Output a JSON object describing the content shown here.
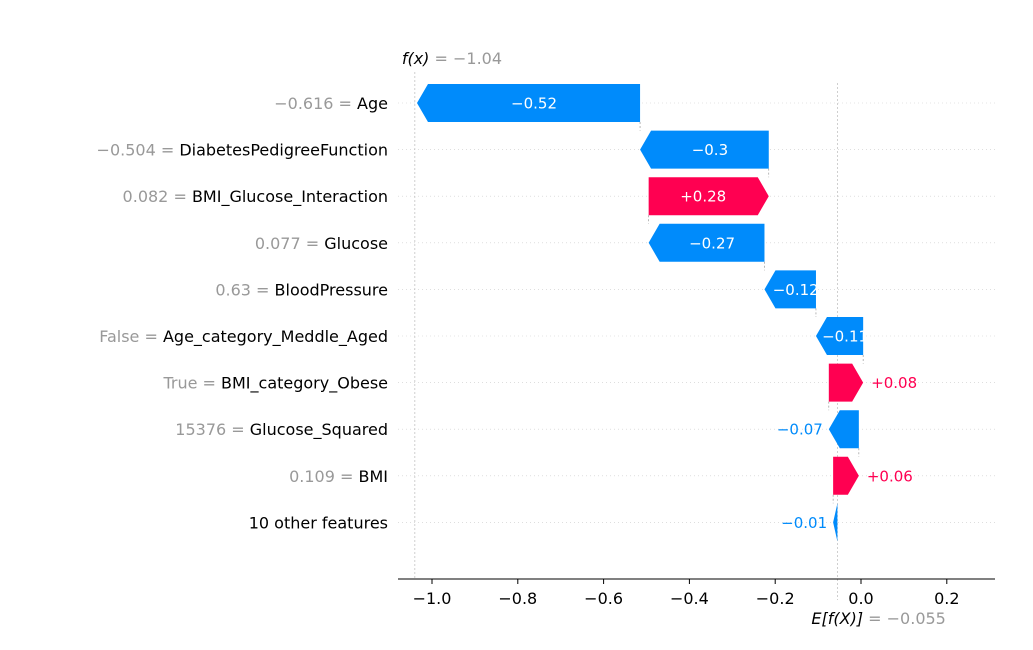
{
  "chart_data": {
    "type": "bar",
    "subtype": "shap-waterfall",
    "fx_label": "f(x)",
    "fx_value": "−1.04",
    "fx_numeric": -1.04,
    "ex_label": "E[f(X)]",
    "ex_value": "−0.055",
    "ex_numeric": -0.055,
    "xlim": [
      -1.08,
      0.32
    ],
    "xticks": [
      -1.0,
      -0.8,
      -0.6,
      -0.4,
      -0.2,
      0.0,
      0.2
    ],
    "xtick_labels": [
      "−1.0",
      "−0.8",
      "−0.6",
      "−0.4",
      "−0.2",
      "0.0",
      "0.2"
    ],
    "colors": {
      "positive": "#ff0051",
      "negative": "#008bfb",
      "value_text": "#999999"
    },
    "features": [
      {
        "value": "−0.616",
        "name": "Age",
        "shap": -0.52,
        "label": "−0.52",
        "start": -0.515,
        "end": -1.035
      },
      {
        "value": "−0.504",
        "name": "DiabetesPedigreeFunction",
        "shap": -0.3,
        "label": "−0.3",
        "start": -0.215,
        "end": -0.515
      },
      {
        "value": "0.082",
        "name": "BMI_Glucose_Interaction",
        "shap": 0.28,
        "label": "+0.28",
        "start": -0.495,
        "end": -0.215
      },
      {
        "value": "0.077",
        "name": "Glucose",
        "shap": -0.27,
        "label": "−0.27",
        "start": -0.225,
        "end": -0.495
      },
      {
        "value": "0.63",
        "name": "BloodPressure",
        "shap": -0.12,
        "label": "−0.12",
        "start": -0.105,
        "end": -0.225
      },
      {
        "value": "False",
        "name": "Age_category_Meddle_Aged",
        "shap": -0.11,
        "label": "−0.11",
        "start": 0.005,
        "end": -0.105
      },
      {
        "value": "True",
        "name": "BMI_category_Obese",
        "shap": 0.08,
        "label": "+0.08",
        "start": -0.075,
        "end": 0.005
      },
      {
        "value": "15376",
        "name": "Glucose_Squared",
        "shap": -0.07,
        "label": "−0.07",
        "start": -0.005,
        "end": -0.075
      },
      {
        "value": "0.109",
        "name": "BMI",
        "shap": 0.06,
        "label": "+0.06",
        "start": -0.065,
        "end": -0.005
      },
      {
        "value": "",
        "name": "10 other features",
        "shap": -0.01,
        "label": "−0.01",
        "start": -0.055,
        "end": -0.065
      }
    ]
  }
}
